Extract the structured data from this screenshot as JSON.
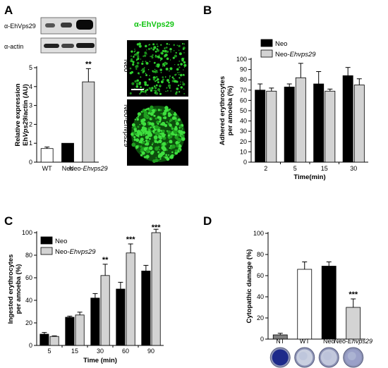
{
  "panels": {
    "a": {
      "letter": "A",
      "blot_label_1": "α-EhVps29",
      "blot_label_2": "α-actin",
      "micro_title": "α-EhVps29",
      "micro_label_1": "Neo",
      "micro_label_2": "Neo-Ehvps29"
    },
    "b": {
      "letter": "B"
    },
    "c": {
      "letter": "C"
    },
    "d": {
      "letter": "D",
      "well_colors": [
        "#1e2a8a",
        "#c9cfe0",
        "#c2c8dc",
        "#9aa0c8"
      ]
    }
  },
  "chart_data": [
    {
      "id": "a",
      "type": "bar",
      "categories": [
        "WT",
        "Neo",
        "Neo-Ehvps29"
      ],
      "values": [
        0.72,
        1.0,
        4.25
      ],
      "errors": [
        0.08,
        0.0,
        0.7
      ],
      "colors": [
        "#ffffff",
        "#000000",
        "#d3d3d3"
      ],
      "significance": [
        "",
        "",
        "**"
      ],
      "ylabel_lines": [
        "Relative expression",
        "EhVps29/actin (AU)"
      ],
      "ylim": [
        0,
        5
      ],
      "yticks": [
        0,
        1,
        2,
        3,
        4,
        5
      ]
    },
    {
      "id": "b",
      "type": "bar",
      "categories": [
        "2",
        "5",
        "15",
        "30"
      ],
      "series": [
        {
          "name": "Neo",
          "color": "#000000",
          "values": [
            70,
            73,
            76,
            84
          ],
          "errors": [
            6,
            3,
            12,
            8
          ]
        },
        {
          "name": "Neo-Ehvps29",
          "color": "#d3d3d3",
          "values": [
            69,
            82,
            69,
            75
          ],
          "errors": [
            3,
            14,
            2,
            6
          ]
        }
      ],
      "significance": [],
      "ylabel_lines": [
        "Adhered erythrocytes",
        "per amoeba (%)"
      ],
      "xlabel": "Time(min)",
      "ylim": [
        0,
        100
      ],
      "yticks": [
        0,
        10,
        20,
        30,
        40,
        50,
        60,
        70,
        80,
        90,
        100
      ]
    },
    {
      "id": "c",
      "type": "bar",
      "categories": [
        "5",
        "15",
        "30",
        "60",
        "90"
      ],
      "series": [
        {
          "name": "Neo",
          "color": "#000000",
          "values": [
            10,
            25,
            42,
            50,
            66
          ],
          "errors": [
            1.5,
            1,
            4,
            6,
            5
          ]
        },
        {
          "name": "Neo-Ehvps29",
          "color": "#d3d3d3",
          "values": [
            8,
            27,
            62,
            82,
            100
          ],
          "errors": [
            0.5,
            2.5,
            10,
            8,
            3
          ]
        }
      ],
      "significance": [
        "",
        "",
        "**",
        "***",
        "***"
      ],
      "ylabel_lines": [
        "Ingested erythrocytes",
        "per amoeba (%)"
      ],
      "xlabel": "Time (min)",
      "ylim": [
        0,
        100
      ],
      "yticks": [
        0,
        20,
        40,
        60,
        80,
        100
      ]
    },
    {
      "id": "d",
      "type": "bar",
      "categories": [
        "NT",
        "WT",
        "Neo",
        "Neo-Ehvps29"
      ],
      "values": [
        4,
        66,
        69,
        30
      ],
      "errors": [
        1.5,
        7,
        4,
        8
      ],
      "colors": [
        "#7f7f7f",
        "#ffffff",
        "#000000",
        "#d3d3d3"
      ],
      "significance": [
        "",
        "",
        "",
        "***"
      ],
      "ylabel_lines": [
        "Cytopathic damage (%)"
      ],
      "ylim": [
        0,
        100
      ],
      "yticks": [
        0,
        20,
        40,
        60,
        80,
        100
      ]
    }
  ]
}
